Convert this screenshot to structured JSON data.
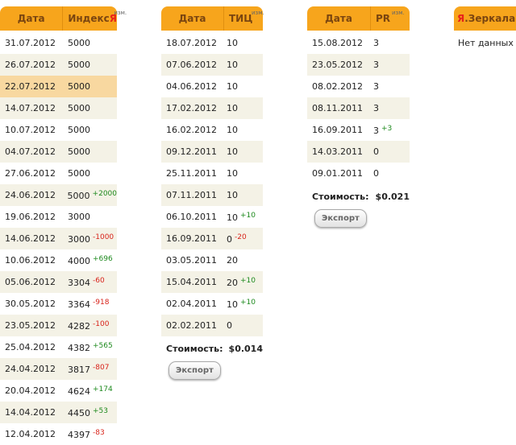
{
  "index_table": {
    "col_date": "Дата",
    "col_value_prefix": "Индекс ",
    "col_value_brand": "Я",
    "change_label": "изм.",
    "rows": [
      [
        "31.07.2012",
        "5000",
        ""
      ],
      [
        "26.07.2012",
        "5000",
        ""
      ],
      [
        "22.07.2012",
        "5000",
        ""
      ],
      [
        "14.07.2012",
        "5000",
        ""
      ],
      [
        "10.07.2012",
        "5000",
        ""
      ],
      [
        "04.07.2012",
        "5000",
        ""
      ],
      [
        "27.06.2012",
        "5000",
        ""
      ],
      [
        "24.06.2012",
        "5000",
        "+2000"
      ],
      [
        "19.06.2012",
        "3000",
        ""
      ],
      [
        "14.06.2012",
        "3000",
        "-1000"
      ],
      [
        "10.06.2012",
        "4000",
        "+696"
      ],
      [
        "05.06.2012",
        "3304",
        "-60"
      ],
      [
        "30.05.2012",
        "3364",
        "-918"
      ],
      [
        "23.05.2012",
        "4282",
        "-100"
      ],
      [
        "25.04.2012",
        "4382",
        "+565"
      ],
      [
        "24.04.2012",
        "3817",
        "-807"
      ],
      [
        "20.04.2012",
        "4624",
        "+174"
      ],
      [
        "14.04.2012",
        "4450",
        "+53"
      ],
      [
        "12.04.2012",
        "4397",
        "-83"
      ]
    ]
  },
  "tic_table": {
    "col_date": "Дата",
    "col_value": "ТИЦ",
    "change_label": "изм.",
    "rows": [
      [
        "18.07.2012",
        "10",
        ""
      ],
      [
        "07.06.2012",
        "10",
        ""
      ],
      [
        "04.06.2012",
        "10",
        ""
      ],
      [
        "17.02.2012",
        "10",
        ""
      ],
      [
        "16.02.2012",
        "10",
        ""
      ],
      [
        "09.12.2011",
        "10",
        ""
      ],
      [
        "25.11.2011",
        "10",
        ""
      ],
      [
        "07.11.2011",
        "10",
        ""
      ],
      [
        "06.10.2011",
        "10",
        "+10"
      ],
      [
        "16.09.2011",
        "0",
        "-20"
      ],
      [
        "03.05.2011",
        "20",
        ""
      ],
      [
        "15.04.2011",
        "20",
        "+10"
      ],
      [
        "02.04.2011",
        "10",
        "+10"
      ],
      [
        "02.02.2011",
        "0",
        ""
      ]
    ],
    "cost_label": "Стоимость:",
    "cost_value": "$0.014",
    "export_label": "Экспорт"
  },
  "pr_table": {
    "col_date": "Дата",
    "col_value": "PR",
    "change_label": "изм.",
    "rows": [
      [
        "15.08.2012",
        "3",
        ""
      ],
      [
        "23.05.2012",
        "3",
        ""
      ],
      [
        "08.02.2012",
        "3",
        ""
      ],
      [
        "08.11.2011",
        "3",
        ""
      ],
      [
        "16.09.2011",
        "3",
        "+3"
      ],
      [
        "14.03.2011",
        "0",
        ""
      ],
      [
        "09.01.2011",
        "0",
        ""
      ]
    ],
    "cost_label": "Стоимость:",
    "cost_value": "$0.021",
    "export_label": "Экспорт"
  },
  "mirrors_table": {
    "title_brand": "Я",
    "title_rest": ".Зеркала",
    "empty_text": "Нет данных"
  },
  "colors": {
    "header": "#f7a51c",
    "header_text": "#7a4510",
    "stripe": "#f4f2e6",
    "highlight": "#f8d8a0",
    "positive": "#1e8a1e",
    "negative": "#d8231a"
  }
}
